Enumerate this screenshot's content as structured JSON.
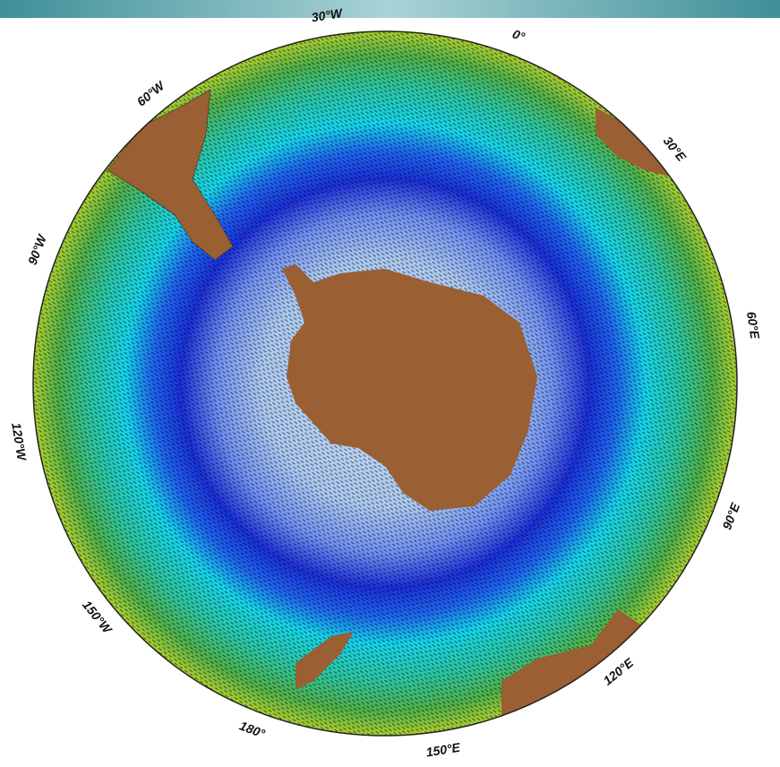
{
  "longitude_labels": [
    "0°",
    "30°E",
    "60°E",
    "90°E",
    "120°E",
    "150°E",
    "180°",
    "150°W",
    "120°W",
    "90°W",
    "60°W",
    "30°W"
  ]
}
